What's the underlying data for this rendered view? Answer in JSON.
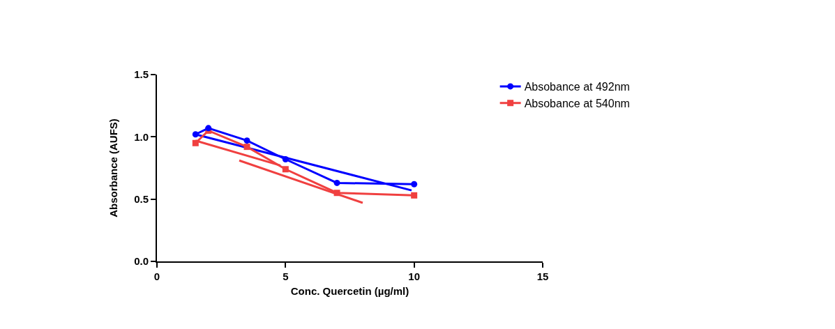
{
  "chart_data": {
    "type": "line",
    "xlabel": "Conc. Quercetin (µg/ml)",
    "ylabel": "Absorbance (AUFS)",
    "xlim": [
      0,
      15
    ],
    "xticks": [
      0,
      5,
      10,
      15
    ],
    "ylim": [
      0,
      1.5
    ],
    "yticks": [
      {
        "value": 0,
        "label": "0.0"
      },
      {
        "value": 0.5,
        "label": "0.5"
      },
      {
        "value": 1,
        "label": "1.0"
      },
      {
        "value": 1.5,
        "label": "1.5"
      }
    ],
    "grid": false,
    "legend": "top right",
    "line_style": "solid",
    "series": [
      {
        "name": "Absobance at 492nm",
        "color": "#0000ff",
        "marker": "circle",
        "x": [
          1.5,
          2,
          3.5,
          5,
          7,
          10
        ],
        "values": [
          1.02,
          1.07,
          0.97,
          0.82,
          0.63,
          0.62
        ]
      },
      {
        "name": "Absobance at 540nm",
        "color": "#f04040",
        "marker": "square",
        "x": [
          1.5,
          2,
          3.5,
          5,
          7,
          10
        ],
        "values": [
          0.95,
          1.05,
          0.92,
          0.74,
          0.55,
          0.53
        ]
      },
      {
        "color": "#0000ff",
        "marker": "none",
        "x": [
          1.5,
          9.9
        ],
        "values": [
          1.02,
          0.57
        ]
      },
      {
        "color": "#f04040",
        "marker": "none",
        "x": [
          1.5,
          4.8
        ],
        "values": [
          0.97,
          0.77
        ]
      },
      {
        "color": "#f04040",
        "marker": "none",
        "x": [
          3.2,
          8
        ],
        "values": [
          0.81,
          0.47
        ]
      }
    ]
  }
}
